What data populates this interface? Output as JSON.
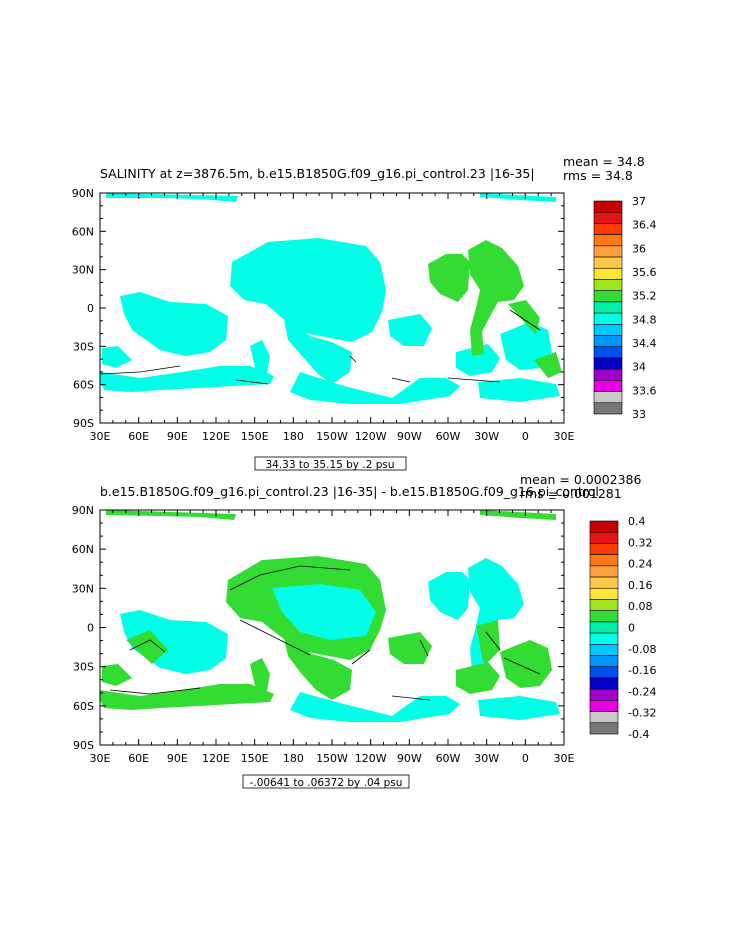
{
  "chart_data": [
    {
      "type": "heatmap",
      "title": "SALINITY at z=3876.5m, b.e15.B1850G.f09_g16.pi_control.23 |16-35|",
      "stats": {
        "mean": "mean = 34.8",
        "rms": "rms = 34.8"
      },
      "xticks": [
        "30E",
        "60E",
        "90E",
        "120E",
        "150E",
        "180",
        "150W",
        "120W",
        "90W",
        "60W",
        "30W",
        "0",
        "30E"
      ],
      "yticks": [
        "90N",
        "60N",
        "30N",
        "0",
        "30S",
        "60S",
        "90S"
      ],
      "xlim": [
        30,
        390
      ],
      "ylim": [
        -90,
        90
      ],
      "contour_info": "34.33 to 35.15 by .2 psu",
      "colorbar": {
        "labels": [
          "37",
          "36.4",
          "36",
          "35.6",
          "35.2",
          "34.8",
          "34.4",
          "34",
          "33.6",
          "33"
        ],
        "colors": [
          "#c80000",
          "#e61414",
          "#ff3c00",
          "#ff7814",
          "#ffa03c",
          "#ffc846",
          "#ffe632",
          "#a0e61e",
          "#32dc32",
          "#00f0aa",
          "#00ffe6",
          "#00c8ff",
          "#0096ff",
          "#0050f0",
          "#0000c8",
          "#a000c8",
          "#e600e6",
          "#c8c8c8",
          "#787878"
        ]
      },
      "fields": [
        {
          "value": 34.8,
          "color": "#00ffe6",
          "regions": "Pacific, Indian, Southern and South Atlantic basins"
        },
        {
          "value": 35.2,
          "color": "#32dc32",
          "regions": "North Atlantic and western Atlantic"
        }
      ]
    },
    {
      "type": "heatmap",
      "title": "b.e15.B1850G.f09_g16.pi_control.23 |16-35| - b.e15.B1850G.f09_g16.pi_control",
      "stats": {
        "mean": "mean = 0.0002386",
        "rms": "rms = 0.001281"
      },
      "xticks": [
        "30E",
        "60E",
        "90E",
        "120E",
        "150E",
        "180",
        "150W",
        "120W",
        "90W",
        "60W",
        "30W",
        "0",
        "30E"
      ],
      "yticks": [
        "90N",
        "60N",
        "30N",
        "0",
        "30S",
        "60S",
        "90S"
      ],
      "xlim": [
        30,
        390
      ],
      "ylim": [
        -90,
        90
      ],
      "contour_info": "-.00641 to .06372 by .04 psu",
      "colorbar": {
        "labels": [
          "0.4",
          "0.32",
          "0.24",
          "0.16",
          "0.08",
          "0",
          "-0.08",
          "-0.16",
          "-0.24",
          "-0.32",
          "-0.4"
        ],
        "colors": [
          "#c80000",
          "#e61414",
          "#ff3c00",
          "#ff7814",
          "#ffa03c",
          "#ffc846",
          "#ffe632",
          "#a0e61e",
          "#32dc32",
          "#00f0aa",
          "#00ffe6",
          "#00c8ff",
          "#0096ff",
          "#0050f0",
          "#0000c8",
          "#a000c8",
          "#e600e6",
          "#c8c8c8",
          "#787878"
        ]
      },
      "fields": [
        {
          "value": 0.04,
          "color": "#32dc32",
          "regions": "North Pacific, Atlantic, Southern Ocean bands"
        },
        {
          "value": -0.04,
          "color": "#00ffe6",
          "regions": "Central Pacific, Indian, South Atlantic"
        }
      ]
    }
  ]
}
